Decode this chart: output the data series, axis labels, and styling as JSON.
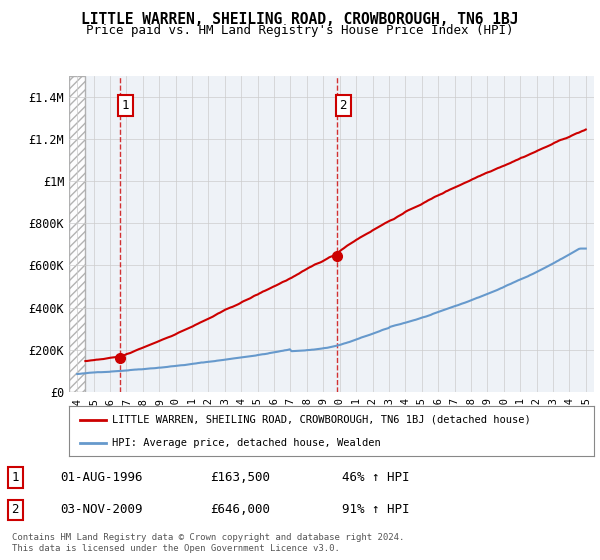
{
  "title": "LITTLE WARREN, SHEILING ROAD, CROWBOROUGH, TN6 1BJ",
  "subtitle": "Price paid vs. HM Land Registry's House Price Index (HPI)",
  "legend_line1": "LITTLE WARREN, SHEILING ROAD, CROWBOROUGH, TN6 1BJ (detached house)",
  "legend_line2": "HPI: Average price, detached house, Wealden",
  "footnote": "Contains HM Land Registry data © Crown copyright and database right 2024.\nThis data is licensed under the Open Government Licence v3.0.",
  "sale1_label": "1",
  "sale1_date": "01-AUG-1996",
  "sale1_price": "£163,500",
  "sale1_hpi": "46% ↑ HPI",
  "sale2_label": "2",
  "sale2_date": "03-NOV-2009",
  "sale2_price": "£646,000",
  "sale2_hpi": "91% ↑ HPI",
  "xlim": [
    1993.5,
    2025.5
  ],
  "ylim": [
    0,
    1500000
  ],
  "yticks": [
    0,
    200000,
    400000,
    600000,
    800000,
    1000000,
    1200000,
    1400000
  ],
  "ytick_labels": [
    "£0",
    "£200K",
    "£400K",
    "£600K",
    "£800K",
    "£1M",
    "£1.2M",
    "£1.4M"
  ],
  "hatch_end_year": 1994.5,
  "sale1_year": 1996.58,
  "sale2_year": 2009.83,
  "sale1_price_val": 163500,
  "sale2_price_val": 646000,
  "red_color": "#cc0000",
  "blue_color": "#6699cc",
  "background_plot": "#eef2f7",
  "background_fig": "#ffffff",
  "grid_color": "#cccccc",
  "dashed_color": "#cc0000"
}
